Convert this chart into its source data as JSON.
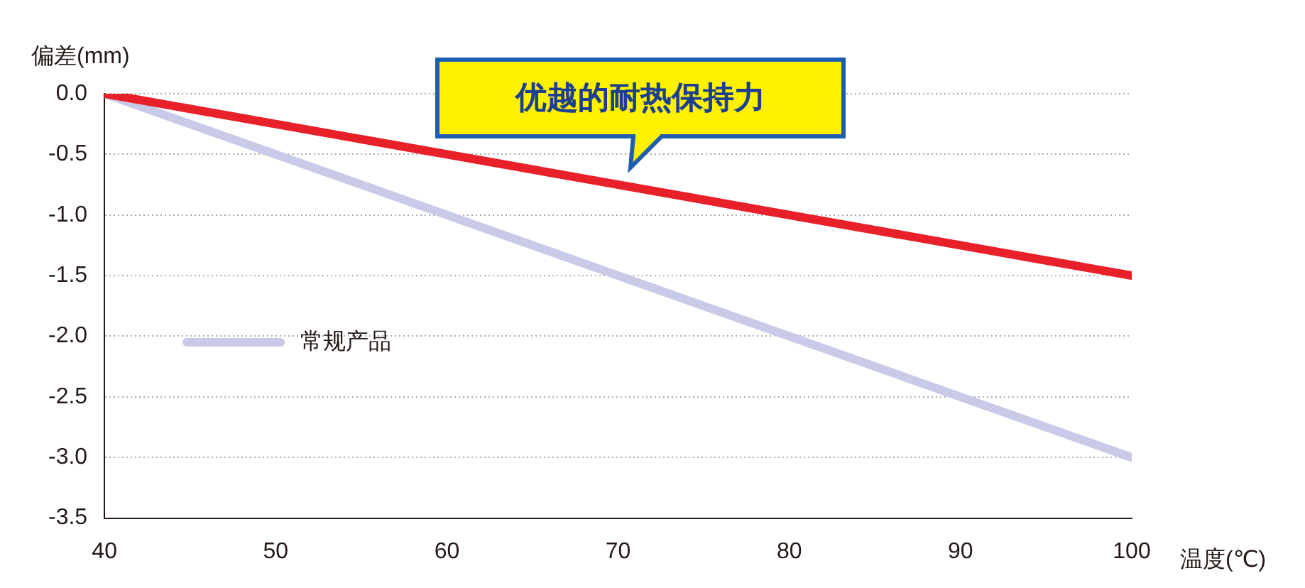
{
  "chart_data": {
    "type": "line",
    "ylabel": "偏差(mm)",
    "xlabel": "温度(℃)",
    "annotations": [
      "优越的耐热保持力"
    ],
    "x": [
      40,
      100
    ],
    "series": [
      {
        "color": "#e8202a",
        "values": [
          0,
          -1.5
        ]
      },
      {
        "name": "常规产品",
        "color": "#c9c9e8",
        "values": [
          0,
          -3
        ]
      }
    ],
    "xlim": [
      40,
      100
    ],
    "xticks": [
      40,
      50,
      60,
      70,
      80,
      90,
      100
    ],
    "ylim": [
      -3.5,
      0
    ],
    "yticks": [
      {
        "value": 0,
        "label": "0.0"
      },
      -0.5,
      {
        "value": -1,
        "label": "-1.0"
      },
      -1.5,
      {
        "value": -2,
        "label": "-2.0"
      },
      -2.5,
      {
        "value": -3,
        "label": "-3.0"
      },
      -3.5
    ],
    "grid": "y",
    "legend": "left",
    "marker": "none",
    "line_style": "solid"
  }
}
